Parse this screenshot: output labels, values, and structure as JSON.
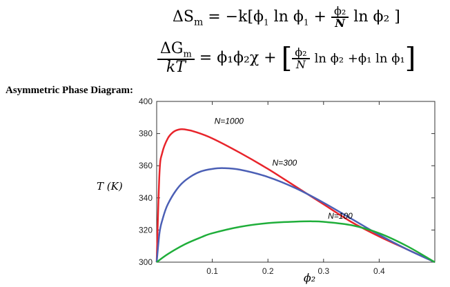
{
  "equations": {
    "entropy_lhs": "ΔS",
    "entropy_lhs_sub": "m",
    "entropy_rhs_a": "= −k[ϕ",
    "entropy_rhs_b": "ln ϕ",
    "entropy_rhs_c": "+",
    "entropy_frac_num": "ϕ₂",
    "entropy_frac_den": "N",
    "entropy_rhs_d": "ln ϕ₂ ]",
    "gibbs_num": "ΔG",
    "gibbs_num_sub": "m",
    "gibbs_den": "kT",
    "gibbs_rhs_a": "= ϕ₁ϕ₂χ +",
    "gibbs_frac_num": "ϕ₂",
    "gibbs_frac_den": "N",
    "gibbs_rhs_b": "ln ϕ₂ +ϕ₁ ln ϕ₁"
  },
  "heading": "Asymmetric Phase Diagram:",
  "chart_data": {
    "type": "line",
    "xlabel": "ϕ₂",
    "ylabel": "T (K)",
    "xlim": [
      0,
      0.5
    ],
    "ylim": [
      300,
      400
    ],
    "x_ticks": [
      0.1,
      0.2,
      0.3,
      0.4
    ],
    "x_tick_labels": [
      "0.1",
      "0.2",
      "0.3",
      "0.4"
    ],
    "y_ticks": [
      300,
      320,
      340,
      360,
      380,
      400
    ],
    "y_tick_labels": [
      "300",
      "320",
      "340",
      "360",
      "380",
      "400"
    ],
    "grid": false,
    "series": [
      {
        "name": "N=1000",
        "color": "#e8242b",
        "x": [
          0,
          0.005,
          0.01,
          0.02,
          0.03,
          0.04,
          0.05,
          0.07,
          0.1,
          0.15,
          0.2,
          0.25,
          0.3,
          0.35,
          0.4,
          0.45,
          0.5
        ],
        "y": [
          300,
          355,
          368,
          377,
          381,
          382.5,
          382.6,
          381,
          377,
          368,
          358,
          347,
          336,
          325,
          316,
          308,
          300
        ]
      },
      {
        "name": "N=300",
        "color": "#4b5fb5",
        "x": [
          0,
          0.005,
          0.01,
          0.02,
          0.04,
          0.06,
          0.08,
          0.1,
          0.12,
          0.15,
          0.2,
          0.25,
          0.3,
          0.35,
          0.4,
          0.45,
          0.5
        ],
        "y": [
          300,
          318,
          326,
          336,
          347,
          353,
          356.5,
          358,
          358.5,
          357.5,
          353,
          346,
          337,
          327,
          317,
          308,
          300
        ]
      },
      {
        "name": "N=100",
        "color": "#1fae3a",
        "x": [
          0,
          0.02,
          0.05,
          0.08,
          0.1,
          0.15,
          0.2,
          0.25,
          0.28,
          0.3,
          0.35,
          0.4,
          0.45,
          0.5
        ],
        "y": [
          300,
          305,
          311,
          315.5,
          318,
          322,
          324.3,
          325.2,
          325.4,
          325.1,
          323,
          318,
          310,
          300
        ]
      }
    ]
  }
}
